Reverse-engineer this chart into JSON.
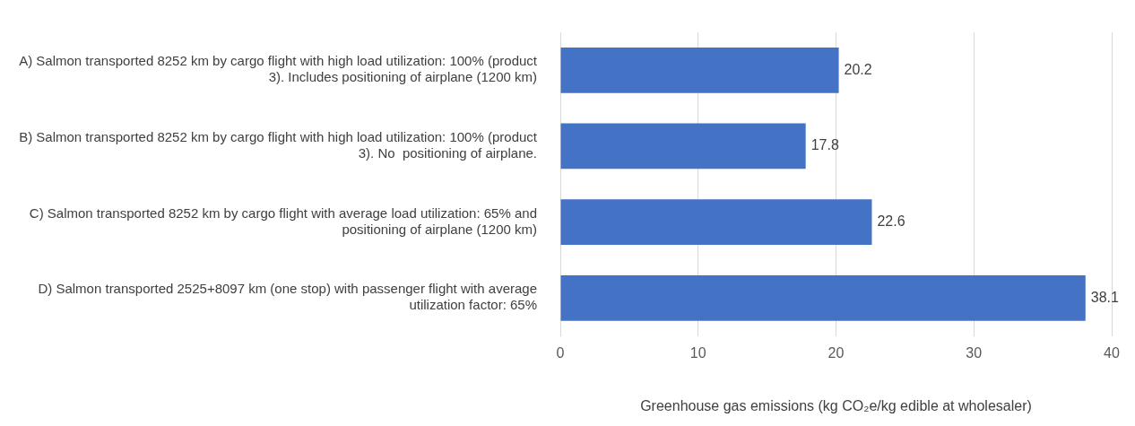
{
  "chart_data": {
    "type": "bar",
    "orientation": "horizontal",
    "categories": [
      "A) Salmon transported 8252 km by cargo flight with high load utilization: 100% (product 3). Includes positioning of airplane (1200 km)",
      "B) Salmon transported 8252 km by cargo flight with high load utilization: 100% (product 3). No  positioning of airplane.",
      "C) Salmon transported 8252 km by cargo flight with average load utilization: 65% and positioning of airplane (1200 km)",
      "D) Salmon transported 2525+8097 km (one stop) with passenger flight with average utilization factor: 65%"
    ],
    "values": [
      20.2,
      17.8,
      22.6,
      38.1
    ],
    "color": "#4472c4",
    "xlabel": "Greenhouse gas emissions (kg CO₂e/kg edible at wholesaler)",
    "xlim": [
      0,
      40
    ],
    "xticks": [
      0,
      10,
      20,
      30,
      40
    ],
    "grid": "x",
    "data_labels": true
  }
}
